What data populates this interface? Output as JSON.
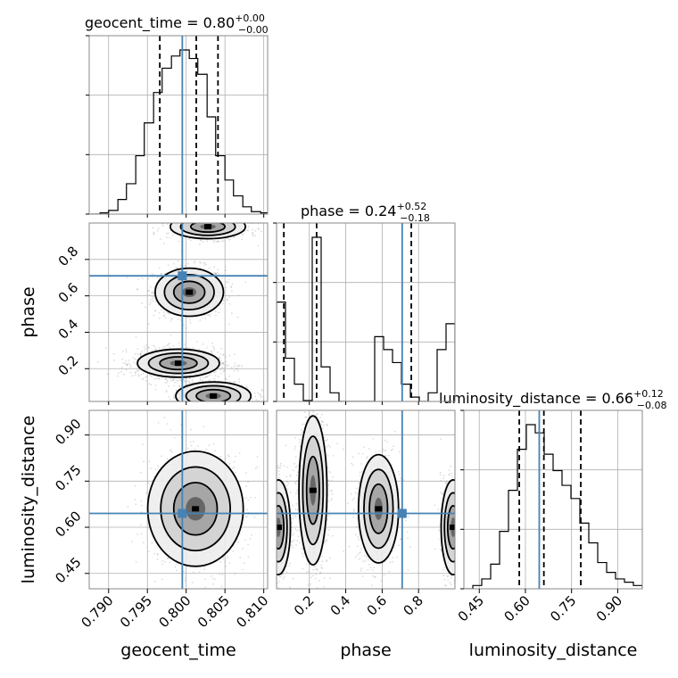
{
  "chart_data": {
    "type": "corner",
    "variables": [
      "geocent_time",
      "phase",
      "luminosity_distance"
    ],
    "truths": {
      "geocent_time": 0.7995,
      "phase": 0.71,
      "luminosity_distance": 0.645
    },
    "diagonal": [
      {
        "param": "geocent_time",
        "title": "geocent_time = 0.80",
        "title_sup": "+0.00",
        "title_sub": "−0.00",
        "xlim": [
          0.7875,
          0.8105
        ],
        "quantiles": [
          0.7966,
          0.8013,
          0.8041
        ],
        "bin_edges": [
          0.7877,
          0.7889,
          0.79,
          0.7912,
          0.7923,
          0.7935,
          0.7946,
          0.7958,
          0.7969,
          0.7981,
          0.7992,
          0.8004,
          0.8015,
          0.8027,
          0.8038,
          0.805,
          0.8061,
          0.8073,
          0.8084,
          0.8096,
          0.8107
        ],
        "counts": [
          0,
          1,
          3,
          12,
          25,
          48,
          75,
          100,
          120,
          130,
          135,
          128,
          115,
          80,
          48,
          28,
          15,
          6,
          2,
          1
        ]
      },
      {
        "param": "phase",
        "title": "phase = 0.24",
        "title_sup": "+0.52",
        "title_sub": "−0.18",
        "xlim": [
          0.02,
          1.0
        ],
        "quantiles": [
          0.06,
          0.24,
          0.76
        ],
        "bin_edges": [
          0.02,
          0.069,
          0.118,
          0.167,
          0.216,
          0.265,
          0.314,
          0.363,
          0.412,
          0.461,
          0.51,
          0.559,
          0.608,
          0.657,
          0.706,
          0.755,
          0.804,
          0.853,
          0.902,
          0.951,
          1.0
        ],
        "counts": [
          115,
          50,
          20,
          1,
          190,
          40,
          10,
          0,
          0,
          0,
          0,
          75,
          60,
          45,
          20,
          5,
          0,
          10,
          60,
          90
        ]
      },
      {
        "param": "luminosity_distance",
        "title": "luminosity_distance = 0.66",
        "title_sup": "+0.12",
        "title_sub": "−0.08",
        "xlim": [
          0.4,
          0.98
        ],
        "quantiles": [
          0.58,
          0.66,
          0.78
        ],
        "bin_edges": [
          0.4,
          0.429,
          0.458,
          0.487,
          0.516,
          0.545,
          0.574,
          0.603,
          0.632,
          0.661,
          0.69,
          0.719,
          0.748,
          0.777,
          0.806,
          0.835,
          0.864,
          0.893,
          0.922,
          0.951,
          0.98
        ],
        "counts": [
          0,
          2,
          6,
          15,
          35,
          60,
          85,
          100,
          95,
          82,
          72,
          63,
          55,
          40,
          28,
          16,
          10,
          6,
          4,
          2
        ]
      }
    ],
    "ticks": {
      "geocent_time": [
        "0.790",
        "0.795",
        "0.800",
        "0.805",
        "0.810"
      ],
      "phase": [
        "0.2",
        "0.4",
        "0.6",
        "0.8"
      ],
      "luminosity_distance": [
        "0.45",
        "0.60",
        "0.75",
        "0.90"
      ]
    },
    "tick_values": {
      "geocent_time": [
        0.79,
        0.795,
        0.8,
        0.805,
        0.81
      ],
      "phase": [
        0.2,
        0.4,
        0.6,
        0.8
      ],
      "luminosity_distance": [
        0.45,
        0.6,
        0.75,
        0.9
      ]
    },
    "xlabels": [
      "geocent_time",
      "phase",
      "luminosity_distance"
    ],
    "ylabels": [
      "phase",
      "luminosity_distance"
    ],
    "pairs": [
      {
        "x": "geocent_time",
        "y": "phase",
        "modes": [
          {
            "cx": 0.8004,
            "cy": 0.62,
            "sx": 0.002,
            "sy": 0.06,
            "w": 1.0
          },
          {
            "cx": 0.799,
            "cy": 0.23,
            "sx": 0.0024,
            "sy": 0.035,
            "w": 1.4
          },
          {
            "cx": 0.8035,
            "cy": 0.05,
            "sx": 0.0022,
            "sy": 0.035,
            "w": 0.9
          },
          {
            "cx": 0.8028,
            "cy": 0.98,
            "sx": 0.0022,
            "sy": 0.03,
            "w": 0.8
          }
        ]
      },
      {
        "x": "geocent_time",
        "y": "luminosity_distance",
        "modes": [
          {
            "cx": 0.8012,
            "cy": 0.66,
            "sx": 0.0028,
            "sy": 0.085,
            "w": 1.0
          }
        ]
      },
      {
        "x": "phase",
        "y": "luminosity_distance",
        "modes": [
          {
            "cx": 0.03,
            "cy": 0.6,
            "sx": 0.03,
            "sy": 0.07,
            "w": 0.8
          },
          {
            "cx": 0.22,
            "cy": 0.72,
            "sx": 0.035,
            "sy": 0.11,
            "w": 1.3
          },
          {
            "cx": 0.58,
            "cy": 0.66,
            "sx": 0.05,
            "sy": 0.08,
            "w": 0.9
          },
          {
            "cx": 0.99,
            "cy": 0.6,
            "sx": 0.03,
            "sy": 0.07,
            "w": 0.8
          }
        ]
      }
    ],
    "colors": {
      "truth": "#4682b4",
      "hist": "#000000",
      "grid": "#b0b0b0",
      "scatter": "#9a9a9a"
    },
    "grid": true
  }
}
